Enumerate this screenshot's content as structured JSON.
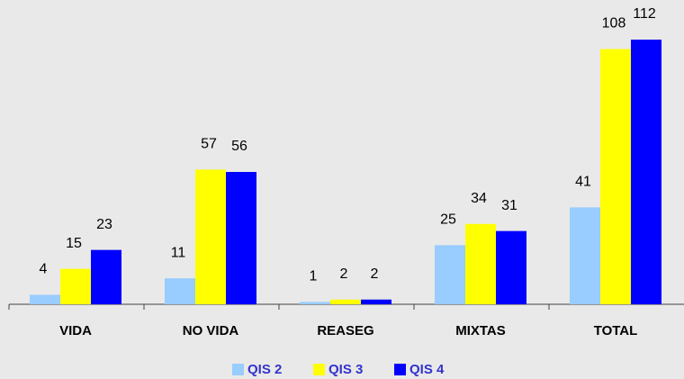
{
  "chart_data": {
    "type": "bar",
    "categories": [
      "VIDA",
      "NO VIDA",
      "REASEG",
      "MIXTAS",
      "TOTAL"
    ],
    "series": [
      {
        "name": "QIS 2",
        "color": "#99ccff",
        "values": [
          4,
          11,
          1,
          25,
          41
        ]
      },
      {
        "name": "QIS 3",
        "color": "#ffff00",
        "values": [
          15,
          57,
          2,
          34,
          108
        ]
      },
      {
        "name": "QIS 4",
        "color": "#0000ff",
        "values": [
          23,
          56,
          2,
          31,
          112
        ]
      }
    ],
    "legend": "bottom"
  }
}
